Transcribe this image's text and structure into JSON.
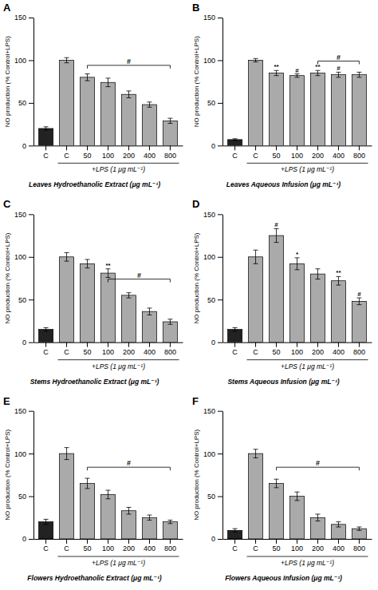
{
  "chart_data": [
    {
      "type": "bar",
      "label": "A",
      "title": "Leaves Hydroethanolic Extract (μg mL⁻¹)",
      "ylabel": "NO production (% Control+LPS)",
      "categories": [
        "C",
        "C",
        "50",
        "100",
        "200",
        "400",
        "800"
      ],
      "values": [
        20,
        100,
        80,
        74,
        60,
        48,
        29
      ],
      "errors": [
        2,
        3,
        4,
        5,
        4,
        3,
        3
      ],
      "colors": [
        "#222222",
        "#aaaaaa",
        "#aaaaaa",
        "#aaaaaa",
        "#aaaaaa",
        "#aaaaaa",
        "#aaaaaa"
      ],
      "ylim": [
        0,
        150
      ],
      "yticks": [
        0,
        50,
        100,
        150
      ],
      "annotations": [
        {
          "kind": "bracket",
          "text": "#",
          "from": 2,
          "to": 6,
          "y": 94
        },
        {
          "kind": "span",
          "text": "+LPS (1 μg mL⁻¹)",
          "from": 1,
          "to": 6
        }
      ]
    },
    {
      "type": "bar",
      "label": "B",
      "title": "Leaves Aqueous Infusion (μg mL⁻¹)",
      "ylabel": "NO production (% Control+LPS)",
      "categories": [
        "C",
        "C",
        "50",
        "100",
        "200",
        "400",
        "800"
      ],
      "values": [
        7,
        100,
        85,
        82,
        85,
        83,
        83
      ],
      "errors": [
        1,
        2,
        3,
        2,
        3,
        3,
        3
      ],
      "colors": [
        "#222222",
        "#aaaaaa",
        "#aaaaaa",
        "#aaaaaa",
        "#aaaaaa",
        "#aaaaaa",
        "#aaaaaa"
      ],
      "ylim": [
        0,
        150
      ],
      "yticks": [
        0,
        50,
        100,
        150
      ],
      "annotations": [
        {
          "kind": "significance",
          "text": "**",
          "index": 2
        },
        {
          "kind": "significance",
          "text": "#",
          "index": 3
        },
        {
          "kind": "significance",
          "text": "**",
          "index": 4
        },
        {
          "kind": "significance",
          "text": "#",
          "index": 5
        },
        {
          "kind": "bracket",
          "text": "#",
          "from": 4,
          "to": 6,
          "y": 99
        },
        {
          "kind": "span",
          "text": "+LPS (1 μg mL⁻¹)",
          "from": 1,
          "to": 6
        }
      ]
    },
    {
      "type": "bar",
      "label": "C",
      "title": "Stems Hydroethanolic Extract (μg mL⁻¹)",
      "ylabel": "NO production (% Control+LPS)",
      "categories": [
        "C",
        "C",
        "50",
        "100",
        "200",
        "400",
        "800"
      ],
      "values": [
        15,
        100,
        92,
        81,
        55,
        36,
        24
      ],
      "errors": [
        2,
        5,
        5,
        5,
        3,
        4,
        3
      ],
      "colors": [
        "#222222",
        "#aaaaaa",
        "#aaaaaa",
        "#aaaaaa",
        "#aaaaaa",
        "#aaaaaa",
        "#aaaaaa"
      ],
      "ylim": [
        0,
        150
      ],
      "yticks": [
        0,
        50,
        100,
        150
      ],
      "annotations": [
        {
          "kind": "significance",
          "text": "**",
          "index": 3
        },
        {
          "kind": "bracket",
          "text": "#",
          "from": 3,
          "to": 6,
          "y": 74
        },
        {
          "kind": "span",
          "text": "+LPS (1 μg mL⁻¹)",
          "from": 1,
          "to": 6
        }
      ]
    },
    {
      "type": "bar",
      "label": "D",
      "title": "Stems Aqueous Infusion (μg mL⁻¹)",
      "ylabel": "NO production (% Control+LPS)",
      "categories": [
        "C",
        "C",
        "50",
        "100",
        "200",
        "400",
        "800"
      ],
      "values": [
        15,
        100,
        125,
        92,
        80,
        72,
        48
      ],
      "errors": [
        2,
        8,
        8,
        7,
        6,
        5,
        4
      ],
      "colors": [
        "#222222",
        "#aaaaaa",
        "#aaaaaa",
        "#aaaaaa",
        "#aaaaaa",
        "#aaaaaa",
        "#aaaaaa"
      ],
      "ylim": [
        0,
        150
      ],
      "yticks": [
        0,
        50,
        100,
        150
      ],
      "annotations": [
        {
          "kind": "significance",
          "text": "#",
          "index": 2
        },
        {
          "kind": "significance",
          "text": "*",
          "index": 3
        },
        {
          "kind": "significance",
          "text": "**",
          "index": 5
        },
        {
          "kind": "significance",
          "text": "#",
          "index": 6
        },
        {
          "kind": "span",
          "text": "+LPS (1 μg mL⁻¹)",
          "from": 1,
          "to": 6
        }
      ]
    },
    {
      "type": "bar",
      "label": "E",
      "title": "Flowers Hydroethanolic Extract (μg mL⁻¹)",
      "ylabel": "NO production (% Control+LPS)",
      "categories": [
        "C",
        "C",
        "50",
        "100",
        "200",
        "400",
        "800"
      ],
      "values": [
        20,
        100,
        65,
        52,
        33,
        25,
        20
      ],
      "errors": [
        3,
        7,
        6,
        5,
        4,
        3,
        2
      ],
      "colors": [
        "#222222",
        "#aaaaaa",
        "#aaaaaa",
        "#aaaaaa",
        "#aaaaaa",
        "#aaaaaa",
        "#aaaaaa"
      ],
      "ylim": [
        0,
        150
      ],
      "yticks": [
        0,
        50,
        100,
        150
      ],
      "annotations": [
        {
          "kind": "bracket",
          "text": "#",
          "from": 2,
          "to": 6,
          "y": 84
        },
        {
          "kind": "span",
          "text": "+LPS (1 μg mL⁻¹)",
          "from": 1,
          "to": 6
        }
      ]
    },
    {
      "type": "bar",
      "label": "F",
      "title": "Flowers Aqueous Infusion (μg mL⁻¹)",
      "ylabel": "NO production (% Control+LPS)",
      "categories": [
        "C",
        "C",
        "50",
        "100",
        "200",
        "400",
        "800"
      ],
      "values": [
        10,
        100,
        65,
        50,
        25,
        17,
        12
      ],
      "errors": [
        2,
        5,
        5,
        5,
        4,
        3,
        2
      ],
      "colors": [
        "#222222",
        "#aaaaaa",
        "#aaaaaa",
        "#aaaaaa",
        "#aaaaaa",
        "#aaaaaa",
        "#aaaaaa"
      ],
      "ylim": [
        0,
        150
      ],
      "yticks": [
        0,
        50,
        100,
        150
      ],
      "annotations": [
        {
          "kind": "bracket",
          "text": "#",
          "from": 2,
          "to": 6,
          "y": 84
        },
        {
          "kind": "span",
          "text": "+LPS (1 μg mL⁻¹)",
          "from": 1,
          "to": 6
        }
      ]
    }
  ]
}
